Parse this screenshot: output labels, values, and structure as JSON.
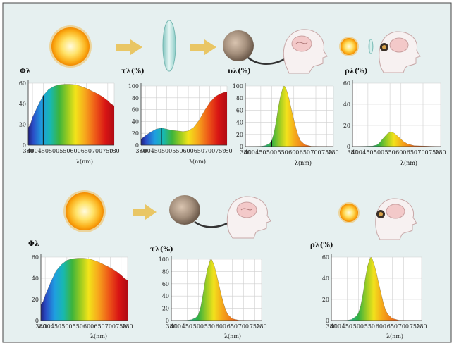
{
  "panels": [
    {
      "id": "p1",
      "ylabel": "Φλ",
      "xlabel": "λ(nm)",
      "yticks": [
        "0",
        "20",
        "40",
        "60"
      ],
      "xticks": [
        "380",
        "400",
        "450",
        "500",
        "550",
        "600",
        "650",
        "700",
        "750",
        "780"
      ],
      "ymax": 60,
      "fill": "spectrum",
      "curve": [
        [
          380,
          17
        ],
        [
          390,
          20
        ],
        [
          400,
          27
        ],
        [
          425,
          38
        ],
        [
          450,
          48
        ],
        [
          475,
          54
        ],
        [
          500,
          57
        ],
        [
          525,
          58.5
        ],
        [
          550,
          59
        ],
        [
          575,
          59
        ],
        [
          600,
          58.5
        ],
        [
          625,
          57
        ],
        [
          650,
          55
        ],
        [
          675,
          52.5
        ],
        [
          700,
          50
        ],
        [
          725,
          47
        ],
        [
          750,
          43
        ],
        [
          765,
          40
        ],
        [
          780,
          38
        ]
      ],
      "marker": [
        450,
        48
      ]
    },
    {
      "id": "p2",
      "ylabel": "τλ(%)",
      "xlabel": "λ(nm)",
      "yticks": [
        "0",
        "20",
        "40",
        "60",
        "80",
        "100"
      ],
      "xticks": [
        "380",
        "400",
        "450",
        "500",
        "550",
        "600",
        "650",
        "700",
        "750",
        "780"
      ],
      "ymax": 100,
      "fill": "spectrum",
      "curve": [
        [
          380,
          10
        ],
        [
          400,
          16
        ],
        [
          425,
          22
        ],
        [
          450,
          27
        ],
        [
          475,
          29
        ],
        [
          500,
          27
        ],
        [
          525,
          25
        ],
        [
          550,
          24
        ],
        [
          575,
          23
        ],
        [
          600,
          24
        ],
        [
          625,
          30
        ],
        [
          650,
          42
        ],
        [
          675,
          58
        ],
        [
          700,
          72
        ],
        [
          725,
          82
        ],
        [
          750,
          87
        ],
        [
          765,
          89
        ],
        [
          780,
          90
        ]
      ],
      "marker": [
        475,
        29
      ]
    },
    {
      "id": "p3",
      "ylabel": "υλ(%)",
      "xlabel": "λ(nm)",
      "yticks": [
        "0",
        "20",
        "40",
        "60",
        "80",
        "100"
      ],
      "xticks": [
        "380",
        "400",
        "450",
        "500",
        "550",
        "600",
        "650",
        "700",
        "750",
        "780"
      ],
      "ymax": 100,
      "fill": "band",
      "curve": [
        [
          380,
          0
        ],
        [
          450,
          0.5
        ],
        [
          470,
          1.5
        ],
        [
          490,
          5
        ],
        [
          500,
          10
        ],
        [
          510,
          22
        ],
        [
          520,
          42
        ],
        [
          530,
          65
        ],
        [
          540,
          84
        ],
        [
          550,
          96
        ],
        [
          555,
          100
        ],
        [
          560,
          99
        ],
        [
          570,
          90
        ],
        [
          580,
          76
        ],
        [
          590,
          60
        ],
        [
          600,
          44
        ],
        [
          610,
          30
        ],
        [
          620,
          18
        ],
        [
          630,
          10
        ],
        [
          650,
          3
        ],
        [
          680,
          0.5
        ],
        [
          780,
          0
        ]
      ],
      "marker": [
        500,
        10
      ]
    },
    {
      "id": "p4",
      "ylabel": "ρλ(%)",
      "xlabel": "λ(nm)",
      "yticks": [
        "0",
        "20",
        "40",
        "60"
      ],
      "xticks": [
        "380",
        "400",
        "450",
        "500",
        "550",
        "600",
        "650",
        "700",
        "750",
        "780"
      ],
      "ymax": 60,
      "fill": "band",
      "curve": [
        [
          380,
          0
        ],
        [
          470,
          0.5
        ],
        [
          490,
          1.5
        ],
        [
          500,
          3
        ],
        [
          520,
          8
        ],
        [
          540,
          12.5
        ],
        [
          555,
          14
        ],
        [
          570,
          12.5
        ],
        [
          590,
          9
        ],
        [
          610,
          5
        ],
        [
          630,
          2.5
        ],
        [
          660,
          0.8
        ],
        [
          780,
          0
        ]
      ]
    },
    {
      "id": "p5",
      "ylabel": "Φλ",
      "xlabel": "λ(nm)",
      "yticks": [
        "0",
        "20",
        "40",
        "60"
      ],
      "xticks": [
        "380",
        "400",
        "450",
        "500",
        "550",
        "600",
        "650",
        "700",
        "750",
        "780"
      ],
      "ymax": 60,
      "fill": "spectrum",
      "curve": [
        [
          380,
          15
        ],
        [
          390,
          18
        ],
        [
          400,
          24
        ],
        [
          425,
          36
        ],
        [
          450,
          47
        ],
        [
          475,
          53
        ],
        [
          500,
          57
        ],
        [
          525,
          58.5
        ],
        [
          550,
          59
        ],
        [
          575,
          59
        ],
        [
          600,
          58.5
        ],
        [
          625,
          57
        ],
        [
          650,
          55
        ],
        [
          675,
          52.5
        ],
        [
          700,
          50
        ],
        [
          725,
          47
        ],
        [
          750,
          43
        ],
        [
          765,
          40
        ],
        [
          780,
          38
        ]
      ]
    },
    {
      "id": "p6",
      "ylabel": "τλ(%)",
      "xlabel": "λ(nm)",
      "yticks": [
        "0",
        "20",
        "40",
        "60",
        "80",
        "100"
      ],
      "xticks": [
        "380",
        "400",
        "450",
        "500",
        "550",
        "600",
        "650",
        "700",
        "750",
        "780"
      ],
      "ymax": 100,
      "fill": "band",
      "curve": [
        [
          380,
          0
        ],
        [
          450,
          0.5
        ],
        [
          470,
          1.5
        ],
        [
          490,
          5
        ],
        [
          500,
          10
        ],
        [
          510,
          22
        ],
        [
          520,
          42
        ],
        [
          530,
          65
        ],
        [
          540,
          84
        ],
        [
          550,
          96
        ],
        [
          555,
          100
        ],
        [
          560,
          99
        ],
        [
          570,
          90
        ],
        [
          580,
          76
        ],
        [
          590,
          60
        ],
        [
          600,
          44
        ],
        [
          610,
          30
        ],
        [
          620,
          18
        ],
        [
          630,
          10
        ],
        [
          650,
          3
        ],
        [
          680,
          0.5
        ],
        [
          780,
          0
        ]
      ]
    },
    {
      "id": "p7",
      "ylabel": "ρλ(%)",
      "xlabel": "λ(nm)",
      "yticks": [
        "0",
        "20",
        "40",
        "60"
      ],
      "xticks": [
        "380",
        "400",
        "450",
        "500",
        "550",
        "600",
        "650",
        "700",
        "750",
        "780"
      ],
      "ymax": 60,
      "fill": "band",
      "curve": [
        [
          380,
          0
        ],
        [
          450,
          0.3
        ],
        [
          470,
          1
        ],
        [
          490,
          4
        ],
        [
          500,
          7
        ],
        [
          510,
          14
        ],
        [
          520,
          25
        ],
        [
          530,
          39
        ],
        [
          540,
          51
        ],
        [
          550,
          58
        ],
        [
          555,
          60
        ],
        [
          560,
          59
        ],
        [
          570,
          53
        ],
        [
          580,
          45
        ],
        [
          590,
          35
        ],
        [
          600,
          26
        ],
        [
          610,
          17
        ],
        [
          620,
          10
        ],
        [
          630,
          6
        ],
        [
          650,
          2
        ],
        [
          680,
          0.3
        ],
        [
          780,
          0
        ]
      ]
    }
  ],
  "colors": {
    "background": "#e6f0f0",
    "frame": "#444444",
    "arrow": "#e2b13c",
    "grid": "#c8c8c8",
    "sun": "#f6a800",
    "lens": "#9fd3d0"
  }
}
